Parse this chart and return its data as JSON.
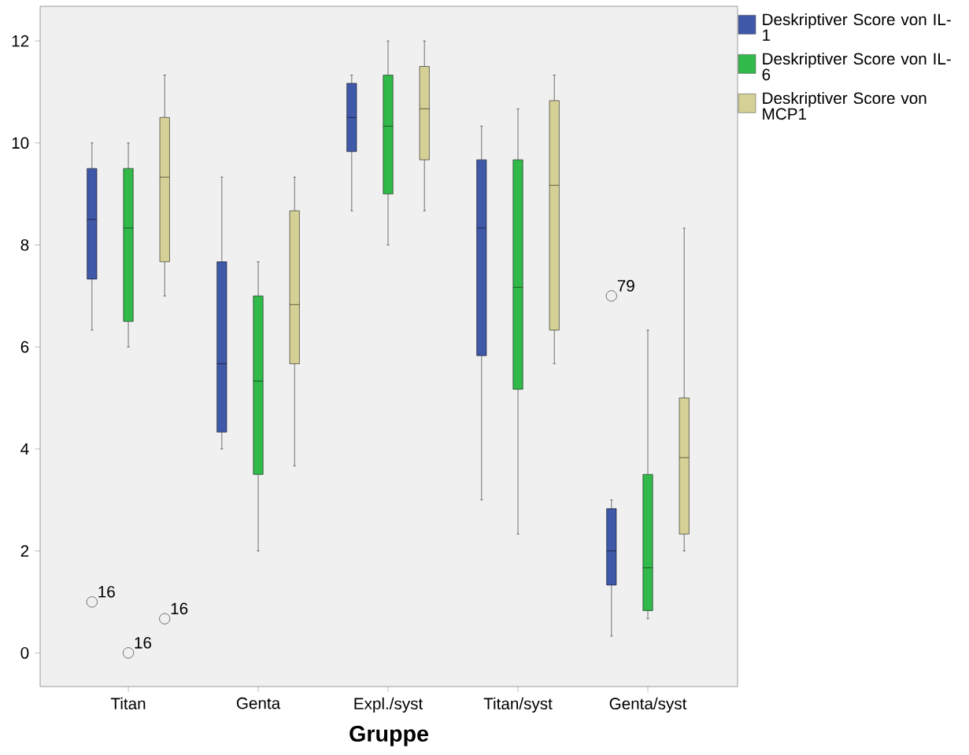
{
  "chart_data": {
    "type": "box",
    "xlabel": "Gruppe",
    "categories": [
      "Titan",
      "Genta",
      "Expl./syst",
      "Titan/syst",
      "Genta/syst"
    ],
    "ylim": [
      -0.66,
      12.68
    ],
    "yticks": [
      0,
      2,
      4,
      6,
      8,
      10,
      12
    ],
    "grid": false,
    "legend": "right",
    "series": [
      {
        "name": "Deskriptiver Score von IL-1",
        "color": "#3f58a8",
        "boxes": [
          {
            "low": 6.33,
            "q1": 7.33,
            "median": 8.5,
            "q3": 9.5,
            "high": 10,
            "outliers": [
              1
            ]
          },
          {
            "low": 4,
            "q1": 4.33,
            "median": 5.67,
            "q3": 7.67,
            "high": 9.33
          },
          {
            "low": 8.67,
            "q1": 9.83,
            "median": 10.5,
            "q3": 11.17,
            "high": 11.33
          },
          {
            "low": 3,
            "q1": 5.83,
            "median": 8.33,
            "q3": 9.67,
            "high": 10.33
          },
          {
            "low": 0.33,
            "q1": 1.33,
            "median": 2,
            "q3": 2.83,
            "high": 3,
            "outliers": [
              7
            ]
          }
        ]
      },
      {
        "name": "Deskriptiver Score von IL-6",
        "color": "#31b94a",
        "boxes": [
          {
            "low": 6,
            "q1": 6.5,
            "median": 8.33,
            "q3": 9.5,
            "high": 10,
            "outliers": [
              0
            ]
          },
          {
            "low": 2,
            "q1": 3.5,
            "median": 5.33,
            "q3": 7,
            "high": 7.67
          },
          {
            "low": 8,
            "q1": 9,
            "median": 10.33,
            "q3": 11.33,
            "high": 12
          },
          {
            "low": 2.33,
            "q1": 5.17,
            "median": 7.17,
            "q3": 9.67,
            "high": 10.67
          },
          {
            "low": 0.67,
            "q1": 0.83,
            "median": 1.67,
            "q3": 3.5,
            "high": 6.33
          }
        ]
      },
      {
        "name": "Deskriptiver Score von MCP1",
        "color": "#d5d096",
        "boxes": [
          {
            "low": 7,
            "q1": 7.67,
            "median": 9.33,
            "q3": 10.5,
            "high": 11.33,
            "outliers": [
              0.67
            ]
          },
          {
            "low": 3.67,
            "q1": 5.67,
            "median": 6.83,
            "q3": 8.67,
            "high": 9.33
          },
          {
            "low": 8.67,
            "q1": 9.67,
            "median": 10.67,
            "q3": 11.5,
            "high": 12
          },
          {
            "low": 5.67,
            "q1": 6.33,
            "median": 9.17,
            "q3": 10.83,
            "high": 11.33
          },
          {
            "low": 2,
            "q1": 2.33,
            "median": 3.83,
            "q3": 5,
            "high": 8.33
          }
        ]
      }
    ],
    "annotations": [
      "16",
      "79",
      "16",
      "16"
    ]
  }
}
